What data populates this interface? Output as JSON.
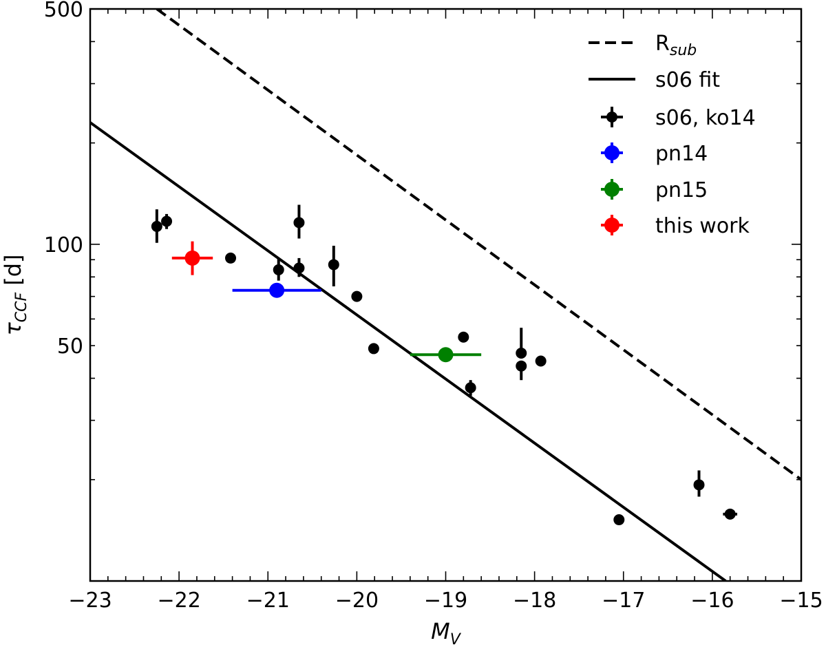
{
  "chart_data": {
    "type": "scatter",
    "xlabel": "M",
    "xlabel_sub": "V",
    "ylabel": "τ",
    "ylabel_sub": "CCF",
    "ylabel_unit": " [d]",
    "xlim": [
      -23,
      -15
    ],
    "ylim": [
      10,
      500
    ],
    "yscale": "log",
    "grid": false,
    "legend_position": "top-right",
    "x_ticks": [
      -23,
      -22,
      -21,
      -20,
      -19,
      -18,
      -17,
      -16,
      -15
    ],
    "x_tick_labels": [
      "−23",
      "−22",
      "−21",
      "−20",
      "−19",
      "−18",
      "−17",
      "−16",
      "−15"
    ],
    "y_ticks": [
      50,
      100,
      500
    ],
    "y_tick_labels": [
      "50",
      "100",
      "500"
    ],
    "lines": [
      {
        "name": "R",
        "name_sub": "sub",
        "style": "dashed",
        "color": "#000000",
        "x": [
          -22.25,
          -15.0
        ],
        "y": [
          500,
          20
        ]
      },
      {
        "name": "s06 fit",
        "style": "solid",
        "color": "#000000",
        "x": [
          -23.0,
          -15.85
        ],
        "y": [
          230,
          10
        ]
      }
    ],
    "series": [
      {
        "name": "s06, ko14",
        "color": "#000000",
        "marker_size": 8,
        "points": [
          {
            "x": -22.25,
            "y": 113,
            "xerr": 0.0,
            "yerr_lo": 12,
            "yerr_hi": 14
          },
          {
            "x": -22.14,
            "y": 117,
            "xerr": 0.0,
            "yerr_lo": 6,
            "yerr_hi": 6
          },
          {
            "x": -21.42,
            "y": 91,
            "xerr": 0.03,
            "yerr_lo": 3,
            "yerr_hi": 3
          },
          {
            "x": -20.88,
            "y": 84,
            "xerr": 0.0,
            "yerr_lo": 6,
            "yerr_hi": 7
          },
          {
            "x": -20.65,
            "y": 85,
            "xerr": 0.0,
            "yerr_lo": 5,
            "yerr_hi": 6
          },
          {
            "x": -20.65,
            "y": 116,
            "xerr": 0.0,
            "yerr_lo": 12,
            "yerr_hi": 15
          },
          {
            "x": -20.26,
            "y": 87,
            "xerr": 0.0,
            "yerr_lo": 12,
            "yerr_hi": 12
          },
          {
            "x": -20.0,
            "y": 70,
            "xerr": 0.0,
            "yerr_lo": 0,
            "yerr_hi": 0
          },
          {
            "x": -19.81,
            "y": 49,
            "xerr": 0.0,
            "yerr_lo": 0,
            "yerr_hi": 0
          },
          {
            "x": -18.8,
            "y": 53,
            "xerr": 0.0,
            "yerr_lo": 0,
            "yerr_hi": 0
          },
          {
            "x": -18.72,
            "y": 37.5,
            "xerr": 0.06,
            "yerr_lo": 2,
            "yerr_hi": 2
          },
          {
            "x": -18.15,
            "y": 47.5,
            "xerr": 0.06,
            "yerr_lo": 0,
            "yerr_hi": 9
          },
          {
            "x": -18.15,
            "y": 43.5,
            "xerr": 0.06,
            "yerr_lo": 4,
            "yerr_hi": 0
          },
          {
            "x": -17.93,
            "y": 45,
            "xerr": 0.06,
            "yerr_lo": 1.5,
            "yerr_hi": 1.5
          },
          {
            "x": -17.05,
            "y": 15.2,
            "xerr": 0.0,
            "yerr_lo": 0,
            "yerr_hi": 0
          },
          {
            "x": -16.15,
            "y": 19.3,
            "xerr": 0.05,
            "yerr_lo": 1.5,
            "yerr_hi": 2
          },
          {
            "x": -15.8,
            "y": 15.8,
            "xerr": 0.08,
            "yerr_lo": 0.5,
            "yerr_hi": 0.5
          }
        ]
      },
      {
        "name": "pn14",
        "color": "#0000ff",
        "marker_size": 11,
        "points": [
          {
            "x": -20.9,
            "y": 73,
            "xerr": 0.5,
            "yerr_lo": 3,
            "yerr_hi": 3
          }
        ]
      },
      {
        "name": "pn15",
        "color": "#008000",
        "marker_size": 11,
        "points": [
          {
            "x": -19.0,
            "y": 47,
            "xerr": 0.4,
            "yerr_lo": 1.5,
            "yerr_hi": 1.5
          }
        ]
      },
      {
        "name": "this work",
        "color": "#ff0000",
        "marker_size": 11,
        "points": [
          {
            "x": -21.85,
            "y": 91,
            "xerr": 0.23,
            "yerr_lo": 10,
            "yerr_hi": 11
          }
        ]
      }
    ]
  }
}
